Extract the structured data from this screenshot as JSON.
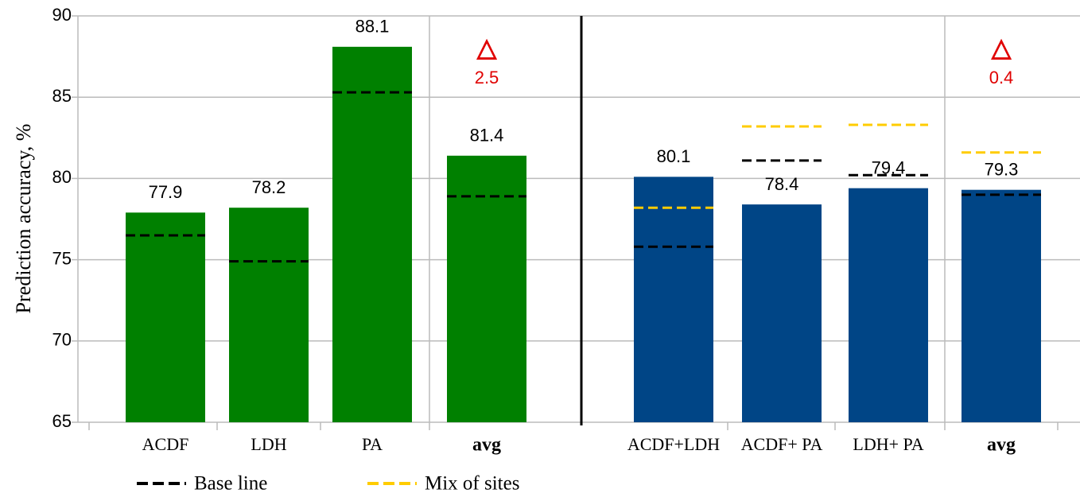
{
  "chart_data": {
    "type": "bar",
    "y_label": "Prediction accuracy, %",
    "categories": [
      "ACDF",
      "LDH",
      "PA",
      "avg",
      "ACDF+LDH",
      "ACDF+ PA",
      "LDH+ PA",
      "avg"
    ],
    "values": [
      77.9,
      78.2,
      88.1,
      81.4,
      80.1,
      78.4,
      79.4,
      79.3
    ],
    "bar_colors": [
      "#008000",
      "#008000",
      "#008000",
      "#008000",
      "#004586",
      "#004586",
      "#004586",
      "#004586"
    ],
    "series": [
      {
        "name": "Base line",
        "color": "#000000",
        "values": [
          76.5,
          74.9,
          85.3,
          78.9,
          75.8,
          81.1,
          80.2,
          79.0
        ]
      },
      {
        "name": "Mix of sites",
        "color": "#ffcc00",
        "values": [
          null,
          null,
          null,
          null,
          78.2,
          83.2,
          83.3,
          81.6
        ]
      }
    ],
    "annotations": [
      {
        "symbol": "△",
        "text": "2.5"
      },
      {
        "symbol": "△",
        "text": "0.4"
      }
    ],
    "ylim": [
      65,
      90
    ],
    "yticks": [
      65,
      70,
      75,
      80,
      85,
      90
    ],
    "grid": true
  }
}
